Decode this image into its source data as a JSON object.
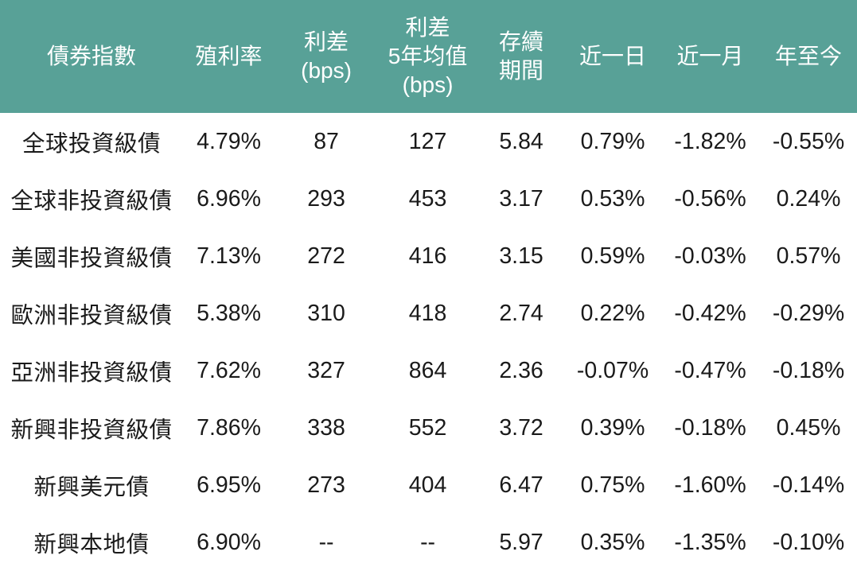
{
  "colors": {
    "header_bg": "#58a197",
    "header_text": "#ffffff",
    "body_text": "#1a1a1a",
    "positive_change": "#b01217",
    "negative_change": "#44716c"
  },
  "chart_data": {
    "type": "table",
    "title": "",
    "columns": [
      {
        "key": "name",
        "label": "債券指數"
      },
      {
        "key": "yield",
        "label": "殖利率"
      },
      {
        "key": "spread",
        "label": "利差\n(bps)"
      },
      {
        "key": "spread5y",
        "label": "利差\n5年均值\n(bps)"
      },
      {
        "key": "duration",
        "label": "存續\n期間"
      },
      {
        "key": "day",
        "label": "近一日"
      },
      {
        "key": "month",
        "label": "近一月"
      },
      {
        "key": "ytd",
        "label": "年至今"
      }
    ],
    "rows": [
      {
        "name": "全球投資級債",
        "values": [
          "4.79%",
          "87",
          "127",
          "5.84",
          "0.79%",
          "-1.82%",
          "-0.55%"
        ]
      },
      {
        "name": "全球非投資級債",
        "values": [
          "6.96%",
          "293",
          "453",
          "3.17",
          "0.53%",
          "-0.56%",
          "0.24%"
        ]
      },
      {
        "name": "美國非投資級債",
        "values": [
          "7.13%",
          "272",
          "416",
          "3.15",
          "0.59%",
          "-0.03%",
          "0.57%"
        ]
      },
      {
        "name": "歐洲非投資級債",
        "values": [
          "5.38%",
          "310",
          "418",
          "2.74",
          "0.22%",
          "-0.42%",
          "-0.29%"
        ]
      },
      {
        "name": "亞洲非投資級債",
        "values": [
          "7.62%",
          "327",
          "864",
          "2.36",
          "-0.07%",
          "-0.47%",
          "-0.18%"
        ]
      },
      {
        "name": "新興非投資級債",
        "values": [
          "7.86%",
          "338",
          "552",
          "3.72",
          "0.39%",
          "-0.18%",
          "0.45%"
        ]
      },
      {
        "name": "新興美元債",
        "values": [
          "6.95%",
          "273",
          "404",
          "6.47",
          "0.75%",
          "-1.60%",
          "-0.14%"
        ]
      },
      {
        "name": "新興本地債",
        "values": [
          "6.90%",
          "--",
          "--",
          "5.97",
          "0.35%",
          "-1.35%",
          "-0.10%"
        ]
      }
    ],
    "change_column_indices": [
      4,
      5,
      6
    ],
    "no_data_placeholder": "--"
  }
}
